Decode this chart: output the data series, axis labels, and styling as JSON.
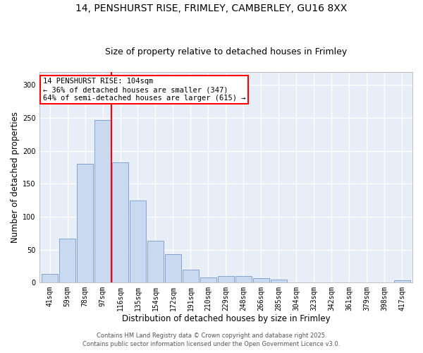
{
  "title_line1": "14, PENSHURST RISE, FRIMLEY, CAMBERLEY, GU16 8XX",
  "title_line2": "Size of property relative to detached houses in Frimley",
  "xlabel": "Distribution of detached houses by size in Frimley",
  "ylabel": "Number of detached properties",
  "categories": [
    "41sqm",
    "59sqm",
    "78sqm",
    "97sqm",
    "116sqm",
    "135sqm",
    "154sqm",
    "172sqm",
    "191sqm",
    "210sqm",
    "229sqm",
    "248sqm",
    "266sqm",
    "285sqm",
    "304sqm",
    "323sqm",
    "342sqm",
    "361sqm",
    "379sqm",
    "398sqm",
    "417sqm"
  ],
  "values": [
    13,
    67,
    180,
    247,
    182,
    125,
    63,
    43,
    20,
    8,
    10,
    10,
    7,
    4,
    0,
    0,
    0,
    0,
    0,
    0,
    3
  ],
  "bar_color": "#c9d9f0",
  "bar_edgecolor": "#7799cc",
  "vline_x": 3.5,
  "vline_color": "red",
  "annotation_text": "14 PENSHURST RISE: 104sqm\n← 36% of detached houses are smaller (347)\n64% of semi-detached houses are larger (615) →",
  "annotation_box_color": "white",
  "annotation_box_edgecolor": "red",
  "ylim": [
    0,
    320
  ],
  "yticks": [
    0,
    50,
    100,
    150,
    200,
    250,
    300
  ],
  "footnote1": "Contains HM Land Registry data © Crown copyright and database right 2025.",
  "footnote2": "Contains public sector information licensed under the Open Government Licence v3.0.",
  "fig_background_color": "#ffffff",
  "plot_background_color": "#e8eef8",
  "grid_color": "white",
  "title_fontsize": 10,
  "subtitle_fontsize": 9,
  "label_fontsize": 8.5,
  "tick_fontsize": 7,
  "annot_fontsize": 7.5,
  "footnote_fontsize": 6
}
